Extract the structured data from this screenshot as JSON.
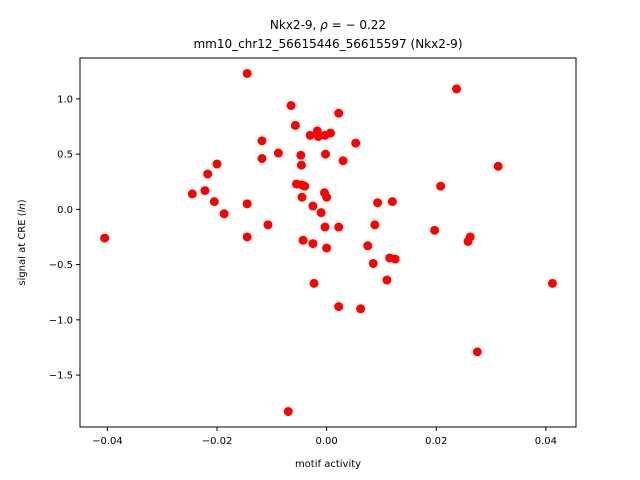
{
  "chart_data": {
    "type": "scatter",
    "title_gene": "Nkx2-9, ",
    "title_rho_symbol": "ρ",
    "title_rho_value": " = − 0.22",
    "subtitle": "mm10_chr12_56615446_56615597 (Nkx2-9)",
    "xlabel": "motif activity",
    "ylabel_prefix": "signal at CRE (",
    "ylabel_italic": "ln",
    "ylabel_suffix": ")",
    "xlim": [
      -0.045,
      0.0455
    ],
    "ylim": [
      -1.97,
      1.37
    ],
    "xticks": [
      -0.04,
      -0.02,
      0.0,
      0.02,
      0.04
    ],
    "xtick_labels": [
      "−0.04",
      "−0.02",
      "0.00",
      "0.02",
      "0.04"
    ],
    "yticks": [
      -1.5,
      -1.0,
      -0.5,
      0.0,
      0.5,
      1.0
    ],
    "ytick_labels": [
      "−1.5",
      "−1.0",
      "−0.5",
      "0.0",
      "0.5",
      "1.0"
    ],
    "grid": false,
    "marker_color": "#ff0000",
    "points": [
      {
        "x": -0.0405,
        "y": -0.26
      },
      {
        "x": -0.0245,
        "y": 0.14
      },
      {
        "x": -0.0222,
        "y": 0.17
      },
      {
        "x": -0.0217,
        "y": 0.32
      },
      {
        "x": -0.0205,
        "y": 0.07
      },
      {
        "x": -0.02,
        "y": 0.41
      },
      {
        "x": -0.0187,
        "y": -0.04
      },
      {
        "x": -0.0145,
        "y": 1.23
      },
      {
        "x": -0.0145,
        "y": 0.05
      },
      {
        "x": -0.0145,
        "y": -0.25
      },
      {
        "x": -0.0118,
        "y": 0.62
      },
      {
        "x": -0.0118,
        "y": 0.46
      },
      {
        "x": -0.0107,
        "y": -0.14
      },
      {
        "x": -0.0088,
        "y": 0.51
      },
      {
        "x": -0.007,
        "y": -1.83
      },
      {
        "x": -0.0065,
        "y": 0.94
      },
      {
        "x": -0.0057,
        "y": 0.76
      },
      {
        "x": -0.0055,
        "y": 0.23
      },
      {
        "x": -0.0047,
        "y": 0.49
      },
      {
        "x": -0.0046,
        "y": 0.4
      },
      {
        "x": -0.0045,
        "y": 0.11
      },
      {
        "x": -0.0045,
        "y": 0.22
      },
      {
        "x": -0.004,
        "y": 0.21
      },
      {
        "x": -0.0043,
        "y": -0.28
      },
      {
        "x": -0.003,
        "y": 0.67
      },
      {
        "x": -0.0025,
        "y": 0.03
      },
      {
        "x": -0.0025,
        "y": -0.31
      },
      {
        "x": -0.0023,
        "y": -0.67
      },
      {
        "x": -0.0017,
        "y": 0.71
      },
      {
        "x": -0.0015,
        "y": 0.66
      },
      {
        "x": -0.001,
        "y": -0.03
      },
      {
        "x": -0.0003,
        "y": 0.67
      },
      {
        "x": -0.0004,
        "y": 0.15
      },
      {
        "x": -0.0003,
        "y": -0.16
      },
      {
        "x": -0.0002,
        "y": 0.5
      },
      {
        "x": 0.0,
        "y": 0.11
      },
      {
        "x": 0.0,
        "y": -0.35
      },
      {
        "x": 0.0007,
        "y": 0.69
      },
      {
        "x": 0.0022,
        "y": 0.87
      },
      {
        "x": 0.0022,
        "y": -0.16
      },
      {
        "x": 0.0022,
        "y": -0.88
      },
      {
        "x": 0.003,
        "y": 0.44
      },
      {
        "x": 0.0053,
        "y": 0.6
      },
      {
        "x": 0.0062,
        "y": -0.9
      },
      {
        "x": 0.0075,
        "y": -0.33
      },
      {
        "x": 0.0085,
        "y": -0.49
      },
      {
        "x": 0.0088,
        "y": -0.14
      },
      {
        "x": 0.0093,
        "y": 0.06
      },
      {
        "x": 0.011,
        "y": -0.64
      },
      {
        "x": 0.0115,
        "y": -0.44
      },
      {
        "x": 0.012,
        "y": 0.07
      },
      {
        "x": 0.0125,
        "y": -0.45
      },
      {
        "x": 0.0197,
        "y": -0.19
      },
      {
        "x": 0.0208,
        "y": 0.21
      },
      {
        "x": 0.0237,
        "y": 1.09
      },
      {
        "x": 0.0258,
        "y": -0.29
      },
      {
        "x": 0.0262,
        "y": -0.25
      },
      {
        "x": 0.0275,
        "y": -1.29
      },
      {
        "x": 0.0313,
        "y": 0.39
      },
      {
        "x": 0.0412,
        "y": -0.67
      }
    ]
  }
}
